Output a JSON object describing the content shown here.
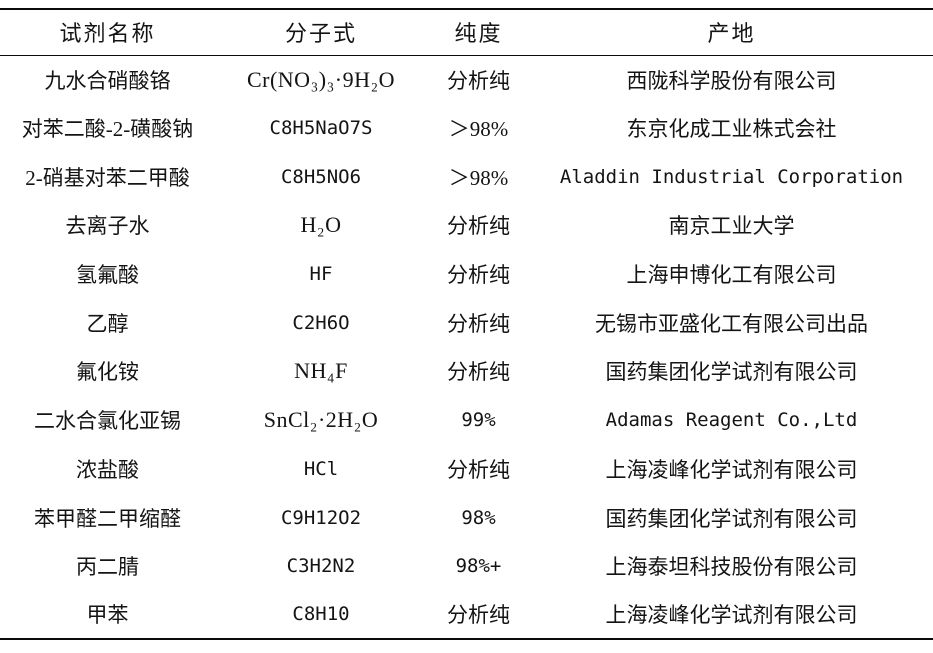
{
  "table": {
    "columns": [
      {
        "label": "试剂名称"
      },
      {
        "label": "分子式"
      },
      {
        "label": "纯度"
      },
      {
        "label": "产地"
      }
    ],
    "rows": [
      {
        "name": "九水合硝酸铬",
        "formula": "Cr(NO₃)₃·9H₂O",
        "purity": "分析纯",
        "origin": "西陇科学股份有限公司"
      },
      {
        "name": "对苯二酸-2-磺酸钠",
        "formula": "C8H5NaO7S",
        "purity": "＞98%",
        "origin": "东京化成工业株式会社"
      },
      {
        "name": "2-硝基对苯二甲酸",
        "formula": "C8H5NO6",
        "purity": "＞98%",
        "origin": "Aladdin Industrial Corporation"
      },
      {
        "name": "去离子水",
        "formula": "H₂O",
        "purity": "分析纯",
        "origin": "南京工业大学"
      },
      {
        "name": "氢氟酸",
        "formula": "HF",
        "purity": "分析纯",
        "origin": "上海申博化工有限公司"
      },
      {
        "name": "乙醇",
        "formula": "C2H6O",
        "purity": "分析纯",
        "origin": "无锡市亚盛化工有限公司出品"
      },
      {
        "name": "氟化铵",
        "formula": "NH₄F",
        "purity": "分析纯",
        "origin": "国药集团化学试剂有限公司"
      },
      {
        "name": "二水合氯化亚锡",
        "formula": "SnCl₂·2H₂O",
        "purity": "99%",
        "origin": "Adamas Reagent Co.,Ltd"
      },
      {
        "name": "浓盐酸",
        "formula": "HCl",
        "purity": "分析纯",
        "origin": "上海凌峰化学试剂有限公司"
      },
      {
        "name": "苯甲醛二甲缩醛",
        "formula": "C9H12O2",
        "purity": "98%",
        "origin": "国药集团化学试剂有限公司"
      },
      {
        "name": "丙二腈",
        "formula": "C3H2N2",
        "purity": "98%+",
        "origin": "上海泰坦科技股份有限公司"
      },
      {
        "name": "甲苯",
        "formula": "C8H10",
        "purity": "分析纯",
        "origin": "上海凌峰化学试剂有限公司"
      }
    ]
  },
  "colors": {
    "text": "#141414",
    "rule": "#0a0a0a",
    "background": "#ffffff"
  }
}
